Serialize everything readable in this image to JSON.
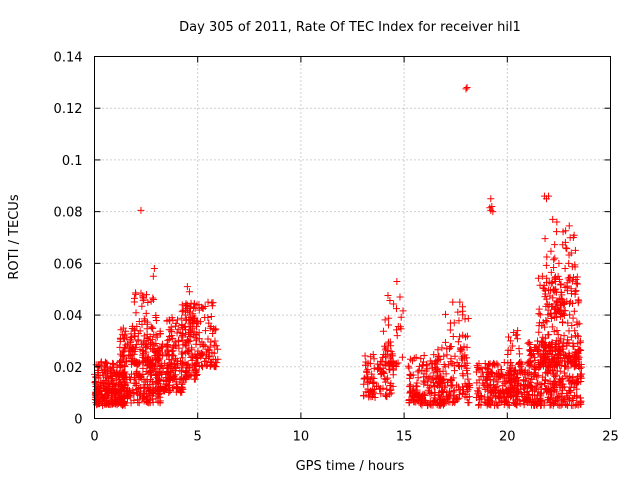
{
  "chart_data": {
    "type": "scatter",
    "title": "Day 305 of 2011, Rate Of TEC Index for receiver hil1",
    "xlabel": "GPS time / hours",
    "ylabel": "ROTI / TECUs",
    "xlim": [
      0,
      25
    ],
    "ylim": [
      0,
      0.14
    ],
    "x_ticks": [
      "0",
      "5",
      "10",
      "15",
      "20",
      "25"
    ],
    "y_ticks": [
      "0",
      "0.02",
      "0.04",
      "0.06",
      "0.08",
      "0.1",
      "0.12",
      "0.14"
    ],
    "grid": true,
    "marker": "+",
    "color": "#ff0000",
    "series": [
      {
        "name": "hil1",
        "clusters": [
          {
            "x": [
              0.0,
              1.5
            ],
            "y": [
              0.005,
              0.022
            ],
            "count": 260
          },
          {
            "x": [
              1.2,
              3.2
            ],
            "y": [
              0.006,
              0.035
            ],
            "count": 260
          },
          {
            "x": [
              1.8,
              3.0
            ],
            "y": [
              0.02,
              0.05
            ],
            "count": 70
          },
          {
            "x": [
              2.8,
              4.3
            ],
            "y": [
              0.01,
              0.03
            ],
            "count": 120
          },
          {
            "x": [
              3.5,
              5.0
            ],
            "y": [
              0.015,
              0.04
            ],
            "count": 130
          },
          {
            "x": [
              4.2,
              6.0
            ],
            "y": [
              0.02,
              0.045
            ],
            "count": 140
          },
          {
            "x": [
              13.0,
              14.5
            ],
            "y": [
              0.008,
              0.025
            ],
            "count": 90
          },
          {
            "x": [
              14.0,
              15.0
            ],
            "y": [
              0.02,
              0.048
            ],
            "count": 45
          },
          {
            "x": [
              15.2,
              17.0
            ],
            "y": [
              0.005,
              0.025
            ],
            "count": 170
          },
          {
            "x": [
              16.5,
              18.2
            ],
            "y": [
              0.006,
              0.028
            ],
            "count": 110
          },
          {
            "x": [
              17.0,
              18.2
            ],
            "y": [
              0.02,
              0.045
            ],
            "count": 35
          },
          {
            "x": [
              18.5,
              21.0
            ],
            "y": [
              0.005,
              0.022
            ],
            "count": 260
          },
          {
            "x": [
              20.0,
              20.6
            ],
            "y": [
              0.01,
              0.034
            ],
            "count": 40
          },
          {
            "x": [
              21.0,
              23.6
            ],
            "y": [
              0.005,
              0.03
            ],
            "count": 330
          },
          {
            "x": [
              21.5,
              23.5
            ],
            "y": [
              0.02,
              0.055
            ],
            "count": 200
          },
          {
            "x": [
              21.8,
              23.3
            ],
            "y": [
              0.04,
              0.075
            ],
            "count": 50
          }
        ],
        "points": [
          [
            2.25,
            0.0805
          ],
          [
            18.05,
            0.128
          ],
          [
            18.0,
            0.1275
          ],
          [
            19.2,
            0.085
          ],
          [
            19.25,
            0.082
          ],
          [
            19.2,
            0.0805
          ],
          [
            19.3,
            0.08
          ],
          [
            19.15,
            0.0815
          ],
          [
            21.8,
            0.086
          ],
          [
            22.0,
            0.086
          ],
          [
            21.9,
            0.085
          ],
          [
            22.2,
            0.077
          ],
          [
            22.4,
            0.076
          ],
          [
            23.2,
            0.07
          ],
          [
            23.3,
            0.065
          ],
          [
            23.1,
            0.064
          ],
          [
            2.9,
            0.058
          ],
          [
            2.85,
            0.055
          ],
          [
            14.65,
            0.053
          ],
          [
            4.5,
            0.051
          ],
          [
            4.6,
            0.049
          ],
          [
            17.7,
            0.045
          ],
          [
            20.5,
            0.034
          ],
          [
            2.0,
            0.048
          ],
          [
            5.5,
            0.045
          ],
          [
            14.8,
            0.047
          ],
          [
            22.3,
            0.062
          ],
          [
            22.5,
            0.06
          ],
          [
            23.4,
            0.052
          ],
          [
            21.7,
            0.055
          ],
          [
            22.8,
            0.058
          ]
        ]
      }
    ]
  }
}
